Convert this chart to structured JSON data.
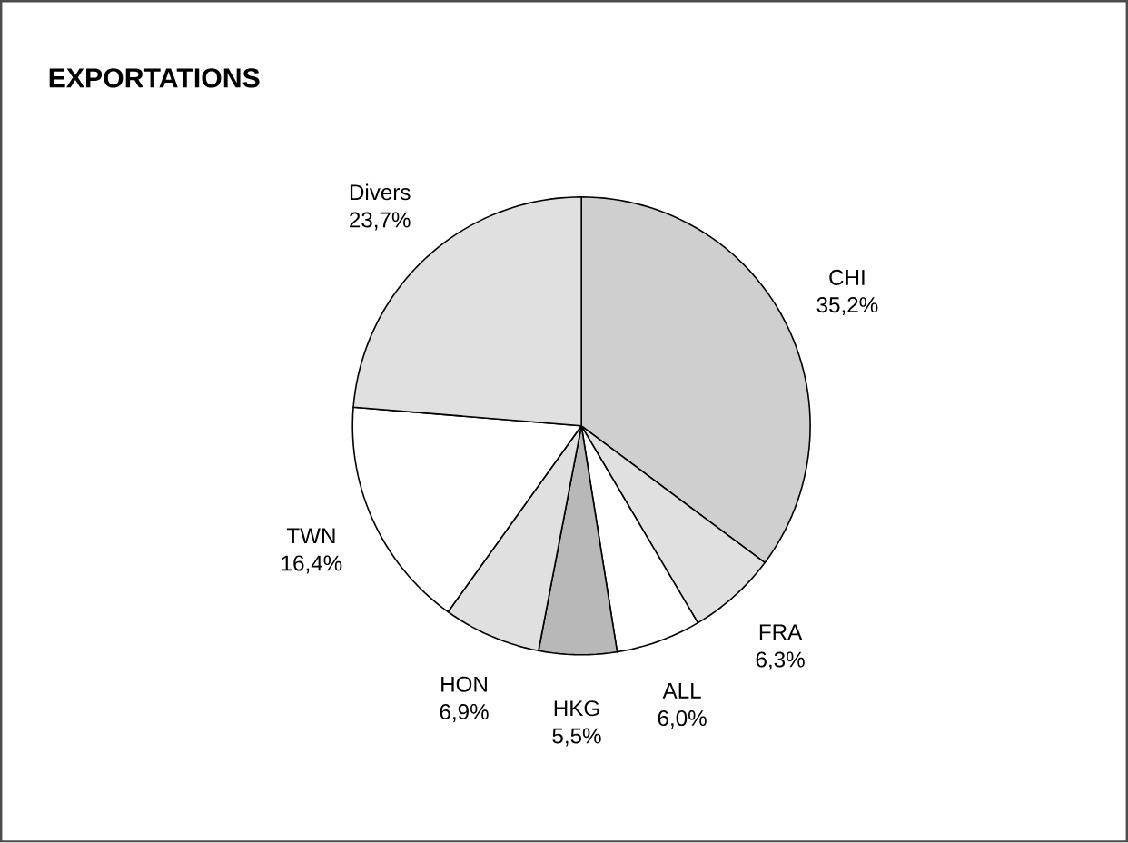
{
  "chart_data": {
    "type": "pie",
    "title": "EXPORTATIONS",
    "categories": [
      "CHI",
      "FRA",
      "ALL",
      "HKG",
      "HON",
      "TWN",
      "Divers"
    ],
    "values": [
      35.2,
      6.3,
      6.0,
      5.5,
      6.9,
      16.4,
      23.7
    ],
    "value_labels": [
      "35,2%",
      "6,3%",
      "6,0%",
      "5,5%",
      "6,9%",
      "16,4%",
      "23,7%"
    ],
    "colors": [
      "#cfcfcf",
      "#e0e0e0",
      "#ffffff",
      "#b8b8b8",
      "#e0e0e0",
      "#ffffff",
      "#e0e0e0"
    ]
  }
}
